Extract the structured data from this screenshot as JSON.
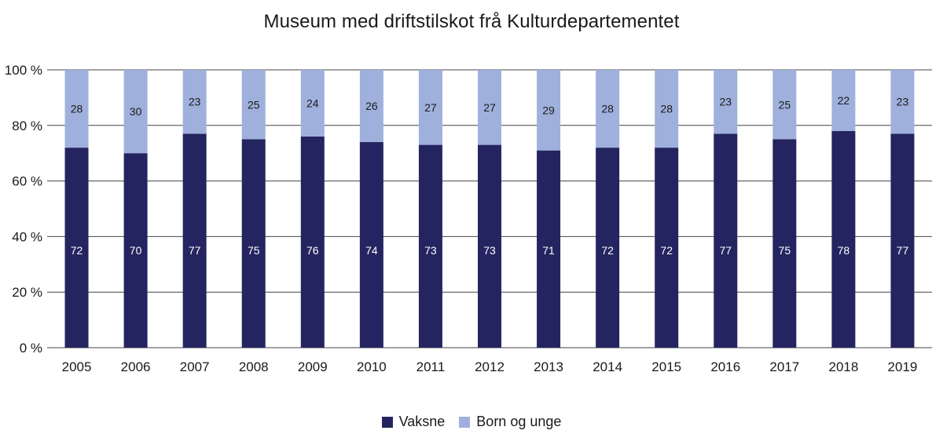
{
  "chart_data": {
    "type": "bar",
    "stacked": true,
    "title": "Museum med driftstilskot frå Kulturdepartementet",
    "xlabel": "",
    "ylabel": "",
    "categories": [
      "2005",
      "2006",
      "2007",
      "2008",
      "2009",
      "2010",
      "2011",
      "2012",
      "2013",
      "2014",
      "2015",
      "2016",
      "2017",
      "2018",
      "2019"
    ],
    "series": [
      {
        "name": "Vaksne",
        "color": "#242560",
        "label_color": "#ffffff",
        "values": [
          72,
          70,
          77,
          75,
          76,
          74,
          73,
          73,
          71,
          72,
          72,
          77,
          75,
          78,
          77
        ]
      },
      {
        "name": "Born og unge",
        "color": "#9fb0dc",
        "label_color": "#1a1a1a",
        "values": [
          28,
          30,
          23,
          25,
          24,
          26,
          27,
          27,
          29,
          28,
          28,
          23,
          25,
          22,
          23
        ]
      }
    ],
    "ylim": [
      0,
      100
    ],
    "yticks": [
      0,
      20,
      40,
      60,
      80,
      100
    ],
    "ytick_labels": [
      "0 %",
      "20 %",
      "40 %",
      "60 %",
      "80 %",
      "100 %"
    ],
    "grid": true,
    "legend_position": "bottom-center"
  }
}
